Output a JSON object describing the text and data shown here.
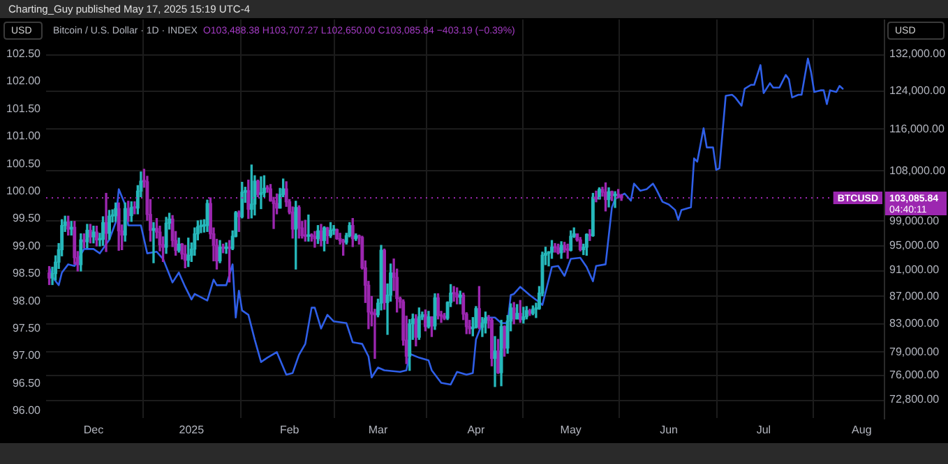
{
  "chart_data": {
    "type": "candlestick",
    "title": "Bitcoin / U.S. Dollar · 1D · INDEX",
    "subtitle": "O103,488.38 H103,707.27 L102,650.00 C103,085.84 −403.19 (−0.39%)",
    "ylabel": "USD",
    "y2label": "USD",
    "annotations": [
      "Charting_Guy published May 17, 2025 15:19 UTC-4",
      "103,085.84",
      "04:40:11"
    ],
    "xlim": [
      "2024-11-16",
      "2025-08-08"
    ],
    "xticks": [
      {
        "value": "2024-12-01",
        "label": "Dec"
      },
      {
        "value": "2025-01-01",
        "label": "2025"
      },
      {
        "value": "2025-02-01",
        "label": "Feb"
      },
      {
        "value": "2025-03-01",
        "label": "Mar"
      },
      {
        "value": "2025-04-01",
        "label": "Apr"
      },
      {
        "value": "2025-05-01",
        "label": "May"
      },
      {
        "value": "2025-06-01",
        "label": "Jun"
      },
      {
        "value": "2025-07-01",
        "label": "Jul"
      },
      {
        "value": "2025-08-01",
        "label": "Aug"
      }
    ],
    "ylim": [
      95.87,
      103.13
    ],
    "yticks": [
      {
        "value": 96,
        "label": "96.00"
      },
      {
        "value": 96.5,
        "label": "96.50"
      },
      {
        "value": 97,
        "label": "97.00"
      },
      {
        "value": 97.5,
        "label": "97.50"
      },
      {
        "value": 98,
        "label": "98.00"
      },
      {
        "value": 98.5,
        "label": "98.50"
      },
      {
        "value": 99,
        "label": "99.00"
      },
      {
        "value": 99.5,
        "label": "99.50"
      },
      {
        "value": 100,
        "label": "100.00"
      },
      {
        "value": 100.5,
        "label": "100.50"
      },
      {
        "value": 101,
        "label": "101.00"
      },
      {
        "value": 101.5,
        "label": "101.50"
      },
      {
        "value": 102,
        "label": "102.00"
      },
      {
        "value": 102.5,
        "label": "102.50"
      }
    ],
    "y2lim": [
      70570,
      140160
    ],
    "y2ticks": [
      {
        "value": 72800,
        "label": "72,800.00"
      },
      {
        "value": 76000,
        "label": "76,000.00"
      },
      {
        "value": 79000,
        "label": "79,000.00"
      },
      {
        "value": 83000,
        "label": "83,000.00"
      },
      {
        "value": 87000,
        "label": "87,000.00"
      },
      {
        "value": 91000,
        "label": "91,000.00"
      },
      {
        "value": 95000,
        "label": "95,000.00"
      },
      {
        "value": 99000,
        "label": "99,000.00"
      },
      {
        "value": 108000,
        "label": "108,000.00"
      },
      {
        "value": 116000,
        "label": "116,000.00"
      },
      {
        "value": 124000,
        "label": "124,000.00"
      },
      {
        "value": 132000,
        "label": "132,000.00"
      }
    ],
    "log": "y2",
    "grid": true,
    "marker": "none",
    "line_style": "solid",
    "ref_lines": [
      {
        "axis": "y2",
        "value": 103085.84,
        "label": "BTCUSD",
        "color": "#9c27b0",
        "line_style": "dotted"
      }
    ],
    "series": [
      {
        "type": "line",
        "color": "#2f5fe8",
        "x": [
          "2024-11-17",
          "2024-11-18",
          "2024-11-20",
          "2024-11-21",
          "2024-11-23",
          "2024-11-25",
          "2024-11-28",
          "2024-12-01",
          "2024-12-03",
          "2024-12-06",
          "2024-12-08",
          "2024-12-09",
          "2024-12-11",
          "2024-12-12",
          "2024-12-16",
          "2024-12-18",
          "2024-12-21",
          "2024-12-23",
          "2024-12-26",
          "2024-12-28",
          "2024-12-30",
          "2025-01-01",
          "2025-01-02",
          "2025-01-06",
          "2025-01-08",
          "2025-01-09",
          "2025-01-12",
          "2025-01-14",
          "2025-01-15",
          "2025-01-16",
          "2025-01-17",
          "2025-01-19",
          "2025-01-21",
          "2025-01-23",
          "2025-01-25",
          "2025-01-28",
          "2025-01-31",
          "2025-02-02",
          "2025-02-04",
          "2025-02-06",
          "2025-02-08",
          "2025-02-09",
          "2025-02-11",
          "2025-02-13",
          "2025-02-15",
          "2025-02-19",
          "2025-02-21",
          "2025-02-24",
          "2025-02-26",
          "2025-02-27",
          "2025-03-01",
          "2025-03-03",
          "2025-03-08",
          "2025-03-10",
          "2025-03-11",
          "2025-03-14",
          "2025-03-17",
          "2025-03-18",
          "2025-03-21",
          "2025-03-24",
          "2025-03-26",
          "2025-03-29",
          "2025-03-31",
          "2025-04-01",
          "2025-04-03",
          "2025-04-04",
          "2025-04-07",
          "2025-04-09",
          "2025-04-11",
          "2025-04-12",
          "2025-04-13",
          "2025-04-15",
          "2025-04-18",
          "2025-04-21",
          "2025-04-22",
          "2025-04-24",
          "2025-04-25",
          "2025-04-27",
          "2025-04-29",
          "2025-05-01",
          "2025-05-04",
          "2025-05-06",
          "2025-05-08",
          "2025-05-09",
          "2025-05-12",
          "2025-05-14",
          "2025-05-15",
          "2025-05-18",
          "2025-05-20",
          "2025-05-21",
          "2025-05-23",
          "2025-05-25",
          "2025-05-27",
          "2025-05-28",
          "2025-05-30",
          "2025-06-01",
          "2025-06-03",
          "2025-06-04",
          "2025-06-05",
          "2025-06-08",
          "2025-06-09",
          "2025-06-10",
          "2025-06-12",
          "2025-06-13",
          "2025-06-15",
          "2025-06-16",
          "2025-06-17",
          "2025-06-19",
          "2025-06-21",
          "2025-06-22",
          "2025-06-24",
          "2025-06-25",
          "2025-06-27",
          "2025-06-28",
          "2025-06-30",
          "2025-07-01",
          "2025-07-03",
          "2025-07-04",
          "2025-07-06",
          "2025-07-08",
          "2025-07-09",
          "2025-07-10",
          "2025-07-12",
          "2025-07-13",
          "2025-07-15",
          "2025-07-16",
          "2025-07-17",
          "2025-07-19",
          "2025-07-20",
          "2025-07-21",
          "2025-07-22",
          "2025-07-24",
          "2025-07-25",
          "2025-07-26"
        ],
        "values": [
          98.62,
          98.44,
          98.29,
          98.52,
          98.67,
          98.64,
          98.95,
          98.95,
          98.87,
          99.12,
          99.43,
          100.04,
          99.76,
          99.38,
          99.38,
          98.87,
          98.9,
          98.77,
          98.34,
          98.52,
          98.26,
          98.03,
          98.13,
          98.01,
          98.39,
          98.29,
          98.29,
          98.67,
          97.7,
          98.19,
          97.83,
          97.75,
          97.3,
          96.89,
          96.97,
          97.07,
          96.66,
          96.69,
          97.02,
          97.22,
          97.88,
          97.88,
          97.5,
          97.75,
          97.63,
          97.6,
          97.25,
          97.22,
          96.99,
          96.61,
          96.79,
          96.74,
          96.71,
          96.74,
          97.04,
          96.97,
          96.92,
          96.74,
          96.51,
          96.48,
          96.71,
          96.66,
          96.69,
          97.3,
          97.6,
          97.7,
          97.7,
          97.6,
          97.6,
          98.11,
          98.13,
          98.26,
          98.11,
          97.98,
          97.93,
          98.39,
          98.62,
          98.64,
          98.46,
          98.77,
          98.79,
          98.62,
          98.36,
          98.64,
          98.67,
          99.71,
          99.86,
          99.96,
          99.83,
          100.14,
          100.01,
          100.04,
          100.14,
          100.04,
          99.81,
          99.76,
          99.66,
          99.48,
          99.66,
          99.71,
          100.6,
          100.54,
          101.15,
          100.8,
          100.8,
          100.39,
          100.42,
          101.74,
          101.76,
          101.71,
          101.56,
          101.87,
          101.94,
          101.94,
          102.3,
          101.79,
          101.97,
          101.89,
          101.89,
          102.12,
          102.04,
          101.71,
          101.76,
          101.76,
          102.42,
          102.17,
          101.81,
          101.84,
          101.84,
          101.59,
          101.84,
          101.81,
          101.92,
          101.87
        ]
      },
      {
        "type": "candlestick",
        "axis": "y2",
        "color": "#26b8bb",
        "x": [
          "2024-11-18",
          "2024-11-19",
          "2024-11-20",
          "2024-11-21",
          "2024-11-22",
          "2024-11-24",
          "2024-11-27",
          "2024-11-29",
          "2024-12-01",
          "2024-12-03",
          "2024-12-04",
          "2024-12-06",
          "2024-12-07",
          "2024-12-08",
          "2024-12-11",
          "2024-12-13",
          "2024-12-15",
          "2024-12-16",
          "2024-12-20",
          "2024-12-24",
          "2024-12-25",
          "2024-12-28",
          "2024-12-31",
          "2025-01-01",
          "2025-01-02",
          "2025-01-03",
          "2025-01-04",
          "2025-01-05",
          "2025-01-06",
          "2025-01-10",
          "2025-01-12",
          "2025-01-14",
          "2025-01-15",
          "2025-01-17",
          "2025-01-18",
          "2025-01-20",
          "2025-01-21",
          "2025-01-23",
          "2025-01-24",
          "2025-01-29",
          "2025-01-30",
          "2025-02-03",
          "2025-02-07",
          "2025-02-10",
          "2025-02-12",
          "2025-02-14",
          "2025-02-15",
          "2025-02-19",
          "2025-02-20",
          "2025-02-22",
          "2025-03-01",
          "2025-03-02",
          "2025-03-04",
          "2025-03-05",
          "2025-03-11",
          "2025-03-12",
          "2025-03-14",
          "2025-03-15",
          "2025-03-17",
          "2025-03-19",
          "2025-03-23",
          "2025-03-24",
          "2025-03-27",
          "2025-03-31",
          "2025-04-01",
          "2025-04-03",
          "2025-04-04",
          "2025-04-07",
          "2025-04-09",
          "2025-04-11",
          "2025-04-12",
          "2025-04-14",
          "2025-04-16",
          "2025-04-17",
          "2025-04-19",
          "2025-04-20",
          "2025-04-21",
          "2025-04-22",
          "2025-04-23",
          "2025-04-24",
          "2025-04-25",
          "2025-04-28",
          "2025-05-01",
          "2025-05-02",
          "2025-05-05",
          "2025-05-06",
          "2025-05-08",
          "2025-05-10",
          "2025-05-13",
          "2025-05-15"
        ],
        "ohlc": [
          [
            89800,
            91500,
            88800,
            90500
          ],
          [
            90500,
            93300,
            89500,
            92300
          ],
          [
            92300,
            95300,
            91300,
            94300
          ],
          [
            94300,
            99300,
            93300,
            98300
          ],
          [
            98300,
            99900,
            97300,
            98900
          ],
          [
            97700,
            99000,
            96700,
            98000
          ],
          [
            91900,
            96900,
            90900,
            95900
          ],
          [
            95600,
            98500,
            94600,
            97500
          ],
          [
            96400,
            98200,
            95400,
            97200
          ],
          [
            95900,
            97000,
            94900,
            96000
          ],
          [
            96000,
            99800,
            95000,
            98800
          ],
          [
            97000,
            100900,
            96000,
            99900
          ],
          [
            99900,
            101000,
            98900,
            100000
          ],
          [
            100000,
            102200,
            99000,
            101200
          ],
          [
            96700,
            102200,
            95700,
            101200
          ],
          [
            100000,
            102400,
            99000,
            101400
          ],
          [
            101300,
            105300,
            100300,
            104300
          ],
          [
            104300,
            107800,
            103300,
            106100
          ],
          [
            97500,
            98800,
            92200,
            97800
          ],
          [
            94700,
            99700,
            93700,
            98700
          ],
          [
            98700,
            100400,
            97700,
            99400
          ],
          [
            94200,
            96200,
            93900,
            95200
          ],
          [
            92600,
            96200,
            91600,
            93400
          ],
          [
            93400,
            95400,
            92400,
            94400
          ],
          [
            94400,
            97900,
            93400,
            96900
          ],
          [
            96900,
            99100,
            95900,
            98100
          ],
          [
            98100,
            99200,
            97100,
            98200
          ],
          [
            98200,
            99300,
            97200,
            98300
          ],
          [
            98300,
            102700,
            97300,
            102100
          ],
          [
            92500,
            95800,
            92200,
            94700
          ],
          [
            94500,
            95400,
            93700,
            94600
          ],
          [
            94500,
            97400,
            94300,
            96500
          ],
          [
            96500,
            100700,
            96400,
            100500
          ],
          [
            99800,
            105900,
            99600,
            104100
          ],
          [
            104100,
            105000,
            102300,
            104400
          ],
          [
            101100,
            109100,
            99600,
            102000
          ],
          [
            102000,
            107100,
            100100,
            106100
          ],
          [
            103700,
            106900,
            101200,
            104000
          ],
          [
            104000,
            107100,
            103300,
            104800
          ],
          [
            101300,
            104800,
            101300,
            103700
          ],
          [
            103700,
            106500,
            103300,
            104700
          ],
          [
            97700,
            102500,
            91200,
            101400
          ],
          [
            96500,
            100100,
            95700,
            96600
          ],
          [
            96100,
            98300,
            95300,
            97400
          ],
          [
            95800,
            98100,
            94100,
            97900
          ],
          [
            96600,
            98800,
            96300,
            97500
          ],
          [
            97500,
            98300,
            96800,
            97600
          ],
          [
            95500,
            97000,
            95200,
            96600
          ],
          [
            96600,
            98800,
            96400,
            98300
          ],
          [
            96100,
            96900,
            95800,
            96600
          ],
          [
            84300,
            86600,
            84000,
            86000
          ],
          [
            86000,
            95000,
            85000,
            94200
          ],
          [
            86100,
            88900,
            81500,
            87200
          ],
          [
            87200,
            92000,
            86300,
            90600
          ],
          [
            78500,
            83600,
            76600,
            83000
          ],
          [
            83000,
            84400,
            80800,
            83700
          ],
          [
            81100,
            85300,
            80800,
            84000
          ],
          [
            84000,
            84700,
            83600,
            84300
          ],
          [
            82600,
            84800,
            82400,
            84000
          ],
          [
            82700,
            87400,
            82200,
            86800
          ],
          [
            83800,
            86200,
            83600,
            86100
          ],
          [
            86100,
            88800,
            85500,
            87500
          ],
          [
            86900,
            87800,
            85900,
            87200
          ],
          [
            82300,
            83900,
            81300,
            82500
          ],
          [
            82500,
            85500,
            82400,
            85200
          ],
          [
            82500,
            83900,
            81200,
            83100
          ],
          [
            83100,
            84700,
            81700,
            83800
          ],
          [
            78200,
            81200,
            74500,
            79200
          ],
          [
            76300,
            83500,
            74600,
            82600
          ],
          [
            79600,
            84200,
            78900,
            83400
          ],
          [
            83400,
            85900,
            82000,
            85300
          ],
          [
            83700,
            85800,
            83700,
            84500
          ],
          [
            83600,
            85400,
            83100,
            84000
          ],
          [
            84000,
            85500,
            83700,
            84900
          ],
          [
            84500,
            85600,
            84300,
            85100
          ],
          [
            85100,
            86000,
            83900,
            85200
          ],
          [
            85200,
            88500,
            85100,
            87500
          ],
          [
            87500,
            93900,
            87100,
            93400
          ],
          [
            93400,
            94700,
            91900,
            93700
          ],
          [
            93700,
            94000,
            91700,
            93900
          ],
          [
            93900,
            95800,
            92900,
            94700
          ],
          [
            93800,
            95600,
            92900,
            95000
          ],
          [
            94200,
            97400,
            94100,
            96500
          ],
          [
            96500,
            97900,
            96300,
            96900
          ],
          [
            94300,
            95200,
            93500,
            94700
          ],
          [
            94700,
            96900,
            93400,
            96800
          ],
          [
            96600,
            103900,
            96500,
            103200
          ],
          [
            102900,
            104900,
            102900,
            104600
          ],
          [
            102800,
            104900,
            101500,
            104200
          ],
          [
            103500,
            104200,
            101400,
            103700
          ]
        ]
      },
      {
        "type": "candlestick",
        "axis": "y2",
        "color": "#9c27b0",
        "x": [
          "2024-11-17",
          "2024-11-23",
          "2024-11-25",
          "2024-11-26",
          "2024-11-28",
          "2024-11-30",
          "2024-12-02",
          "2024-12-05",
          "2024-12-09",
          "2024-12-10",
          "2024-12-12",
          "2024-12-14",
          "2024-12-17",
          "2024-12-18",
          "2024-12-19",
          "2024-12-21",
          "2024-12-22",
          "2024-12-23",
          "2024-12-26",
          "2024-12-27",
          "2024-12-29",
          "2024-12-30",
          "2025-01-07",
          "2025-01-08",
          "2025-01-09",
          "2025-01-11",
          "2025-01-13",
          "2025-01-16",
          "2025-01-19",
          "2025-01-22",
          "2025-01-25",
          "2025-01-26",
          "2025-01-27",
          "2025-01-28",
          "2025-01-31",
          "2025-02-01",
          "2025-02-02",
          "2025-02-04",
          "2025-02-05",
          "2025-02-06",
          "2025-02-08",
          "2025-02-09",
          "2025-02-11",
          "2025-02-13",
          "2025-02-16",
          "2025-02-17",
          "2025-02-18",
          "2025-02-21",
          "2025-02-23",
          "2025-02-24",
          "2025-02-25",
          "2025-02-26",
          "2025-02-27",
          "2025-02-28",
          "2025-03-03",
          "2025-03-06",
          "2025-03-07",
          "2025-03-08",
          "2025-03-09",
          "2025-03-10",
          "2025-03-13",
          "2025-03-16",
          "2025-03-18",
          "2025-03-20",
          "2025-03-21",
          "2025-03-22",
          "2025-03-25",
          "2025-03-26",
          "2025-03-28",
          "2025-03-29",
          "2025-03-30",
          "2025-04-02",
          "2025-04-05",
          "2025-04-06",
          "2025-04-08",
          "2025-04-10",
          "2025-04-13",
          "2025-04-15",
          "2025-04-18",
          "2025-04-26",
          "2025-04-27",
          "2025-04-29",
          "2025-04-30",
          "2025-05-03",
          "2025-05-04",
          "2025-05-07",
          "2025-05-09",
          "2025-05-11",
          "2025-05-12",
          "2025-05-14",
          "2025-05-16",
          "2025-05-17"
        ],
        "ohlc": [
          [
            90600,
            91600,
            88800,
            89800
          ],
          [
            98900,
            99900,
            96700,
            97700
          ],
          [
            98000,
            99000,
            92000,
            93000
          ],
          [
            93000,
            94000,
            90900,
            91900
          ],
          [
            95900,
            96900,
            94600,
            95600
          ],
          [
            97500,
            98500,
            95400,
            96400
          ],
          [
            97200,
            98200,
            94900,
            95900
          ],
          [
            98800,
            103900,
            94000,
            97000
          ],
          [
            101200,
            102200,
            94200,
            97400
          ],
          [
            97400,
            98400,
            94300,
            96700
          ],
          [
            101200,
            102500,
            99000,
            100000
          ],
          [
            101400,
            102400,
            100300,
            101300
          ],
          [
            106100,
            108300,
            105000,
            106000
          ],
          [
            106000,
            107000,
            99200,
            100200
          ],
          [
            100200,
            102800,
            95700,
            97500
          ],
          [
            97800,
            99500,
            96200,
            97200
          ],
          [
            97200,
            98200,
            94100,
            95100
          ],
          [
            95100,
            96400,
            92400,
            94700
          ],
          [
            99400,
            100000,
            94800,
            95800
          ],
          [
            95800,
            97300,
            93400,
            94200
          ],
          [
            95200,
            95300,
            92800,
            93600
          ],
          [
            93600,
            95000,
            91400,
            92600
          ],
          [
            102100,
            103100,
            96100,
            96900
          ],
          [
            96900,
            97900,
            92500,
            95000
          ],
          [
            95000,
            96000,
            91200,
            92500
          ],
          [
            94700,
            95200,
            93800,
            94500
          ],
          [
            94600,
            95800,
            89200,
            94500
          ],
          [
            100500,
            100800,
            97300,
            99800
          ],
          [
            104400,
            106300,
            99500,
            101100
          ],
          [
            106100,
            106300,
            103300,
            103700
          ],
          [
            104800,
            105300,
            104100,
            104700
          ],
          [
            104700,
            105500,
            102500,
            102600
          ],
          [
            102600,
            103200,
            97800,
            102100
          ],
          [
            102100,
            103800,
            100300,
            101300
          ],
          [
            104700,
            106000,
            101600,
            102400
          ],
          [
            102400,
            102800,
            100300,
            100600
          ],
          [
            100600,
            101500,
            96200,
            97700
          ],
          [
            101400,
            101700,
            96200,
            97900
          ],
          [
            97900,
            99000,
            96200,
            96600
          ],
          [
            96600,
            99200,
            95700,
            96500
          ],
          [
            96600,
            96900,
            95700,
            96500
          ],
          [
            96500,
            97300,
            94700,
            96100
          ],
          [
            97400,
            98500,
            94900,
            95800
          ],
          [
            97900,
            98000,
            95300,
            96600
          ],
          [
            97600,
            97700,
            96000,
            96100
          ],
          [
            96100,
            97000,
            95200,
            95800
          ],
          [
            95800,
            96000,
            93400,
            95500
          ],
          [
            98300,
            99500,
            94800,
            96100
          ],
          [
            96600,
            96700,
            95200,
            96300
          ],
          [
            96300,
            96500,
            91200,
            91400
          ],
          [
            91400,
            92500,
            86100,
            88700
          ],
          [
            88700,
            89300,
            82300,
            84700
          ],
          [
            84700,
            87000,
            82700,
            84400
          ],
          [
            84400,
            85100,
            78200,
            84300
          ],
          [
            94200,
            94400,
            85100,
            86100
          ],
          [
            90600,
            92800,
            87900,
            89900
          ],
          [
            89900,
            91200,
            84700,
            86700
          ],
          [
            86700,
            86900,
            85300,
            86200
          ],
          [
            86200,
            86500,
            80000,
            80700
          ],
          [
            80700,
            84100,
            77500,
            78500
          ],
          [
            83700,
            84300,
            79900,
            81100
          ],
          [
            84300,
            85000,
            82000,
            82600
          ],
          [
            84000,
            84000,
            81200,
            82700
          ],
          [
            86800,
            87400,
            83700,
            84200
          ],
          [
            84200,
            84800,
            83200,
            84100
          ],
          [
            84100,
            84500,
            83600,
            83800
          ],
          [
            87500,
            88500,
            86300,
            87400
          ],
          [
            87400,
            88300,
            85900,
            86900
          ],
          [
            87200,
            87500,
            83600,
            84400
          ],
          [
            84400,
            84600,
            81600,
            82600
          ],
          [
            82600,
            83500,
            81600,
            82300
          ],
          [
            85200,
            88500,
            82300,
            82500
          ],
          [
            83800,
            84200,
            82400,
            83500
          ],
          [
            83500,
            83800,
            77200,
            78200
          ],
          [
            79200,
            80800,
            76200,
            76300
          ],
          [
            82600,
            82700,
            78500,
            79600
          ],
          [
            85300,
            86100,
            83000,
            83700
          ],
          [
            84500,
            86400,
            83200,
            83600
          ],
          [
            84900,
            85100,
            84200,
            84500
          ],
          [
            94700,
            95300,
            93900,
            94600
          ],
          [
            94600,
            95200,
            93600,
            93800
          ],
          [
            95000,
            95500,
            93900,
            94300
          ],
          [
            94300,
            95200,
            92900,
            94200
          ],
          [
            96900,
            96900,
            95700,
            95900
          ],
          [
            95900,
            96300,
            94100,
            94300
          ],
          [
            96800,
            97600,
            95800,
            96600
          ],
          [
            103200,
            104300,
            102400,
            102900
          ],
          [
            104600,
            105000,
            103400,
            104100
          ],
          [
            104100,
            105800,
            100800,
            102800
          ],
          [
            104200,
            104300,
            102600,
            103500
          ],
          [
            103700,
            104600,
            103100,
            103490
          ],
          [
            103488.38,
            103707.27,
            102650,
            103085.84
          ]
        ]
      }
    ]
  }
}
